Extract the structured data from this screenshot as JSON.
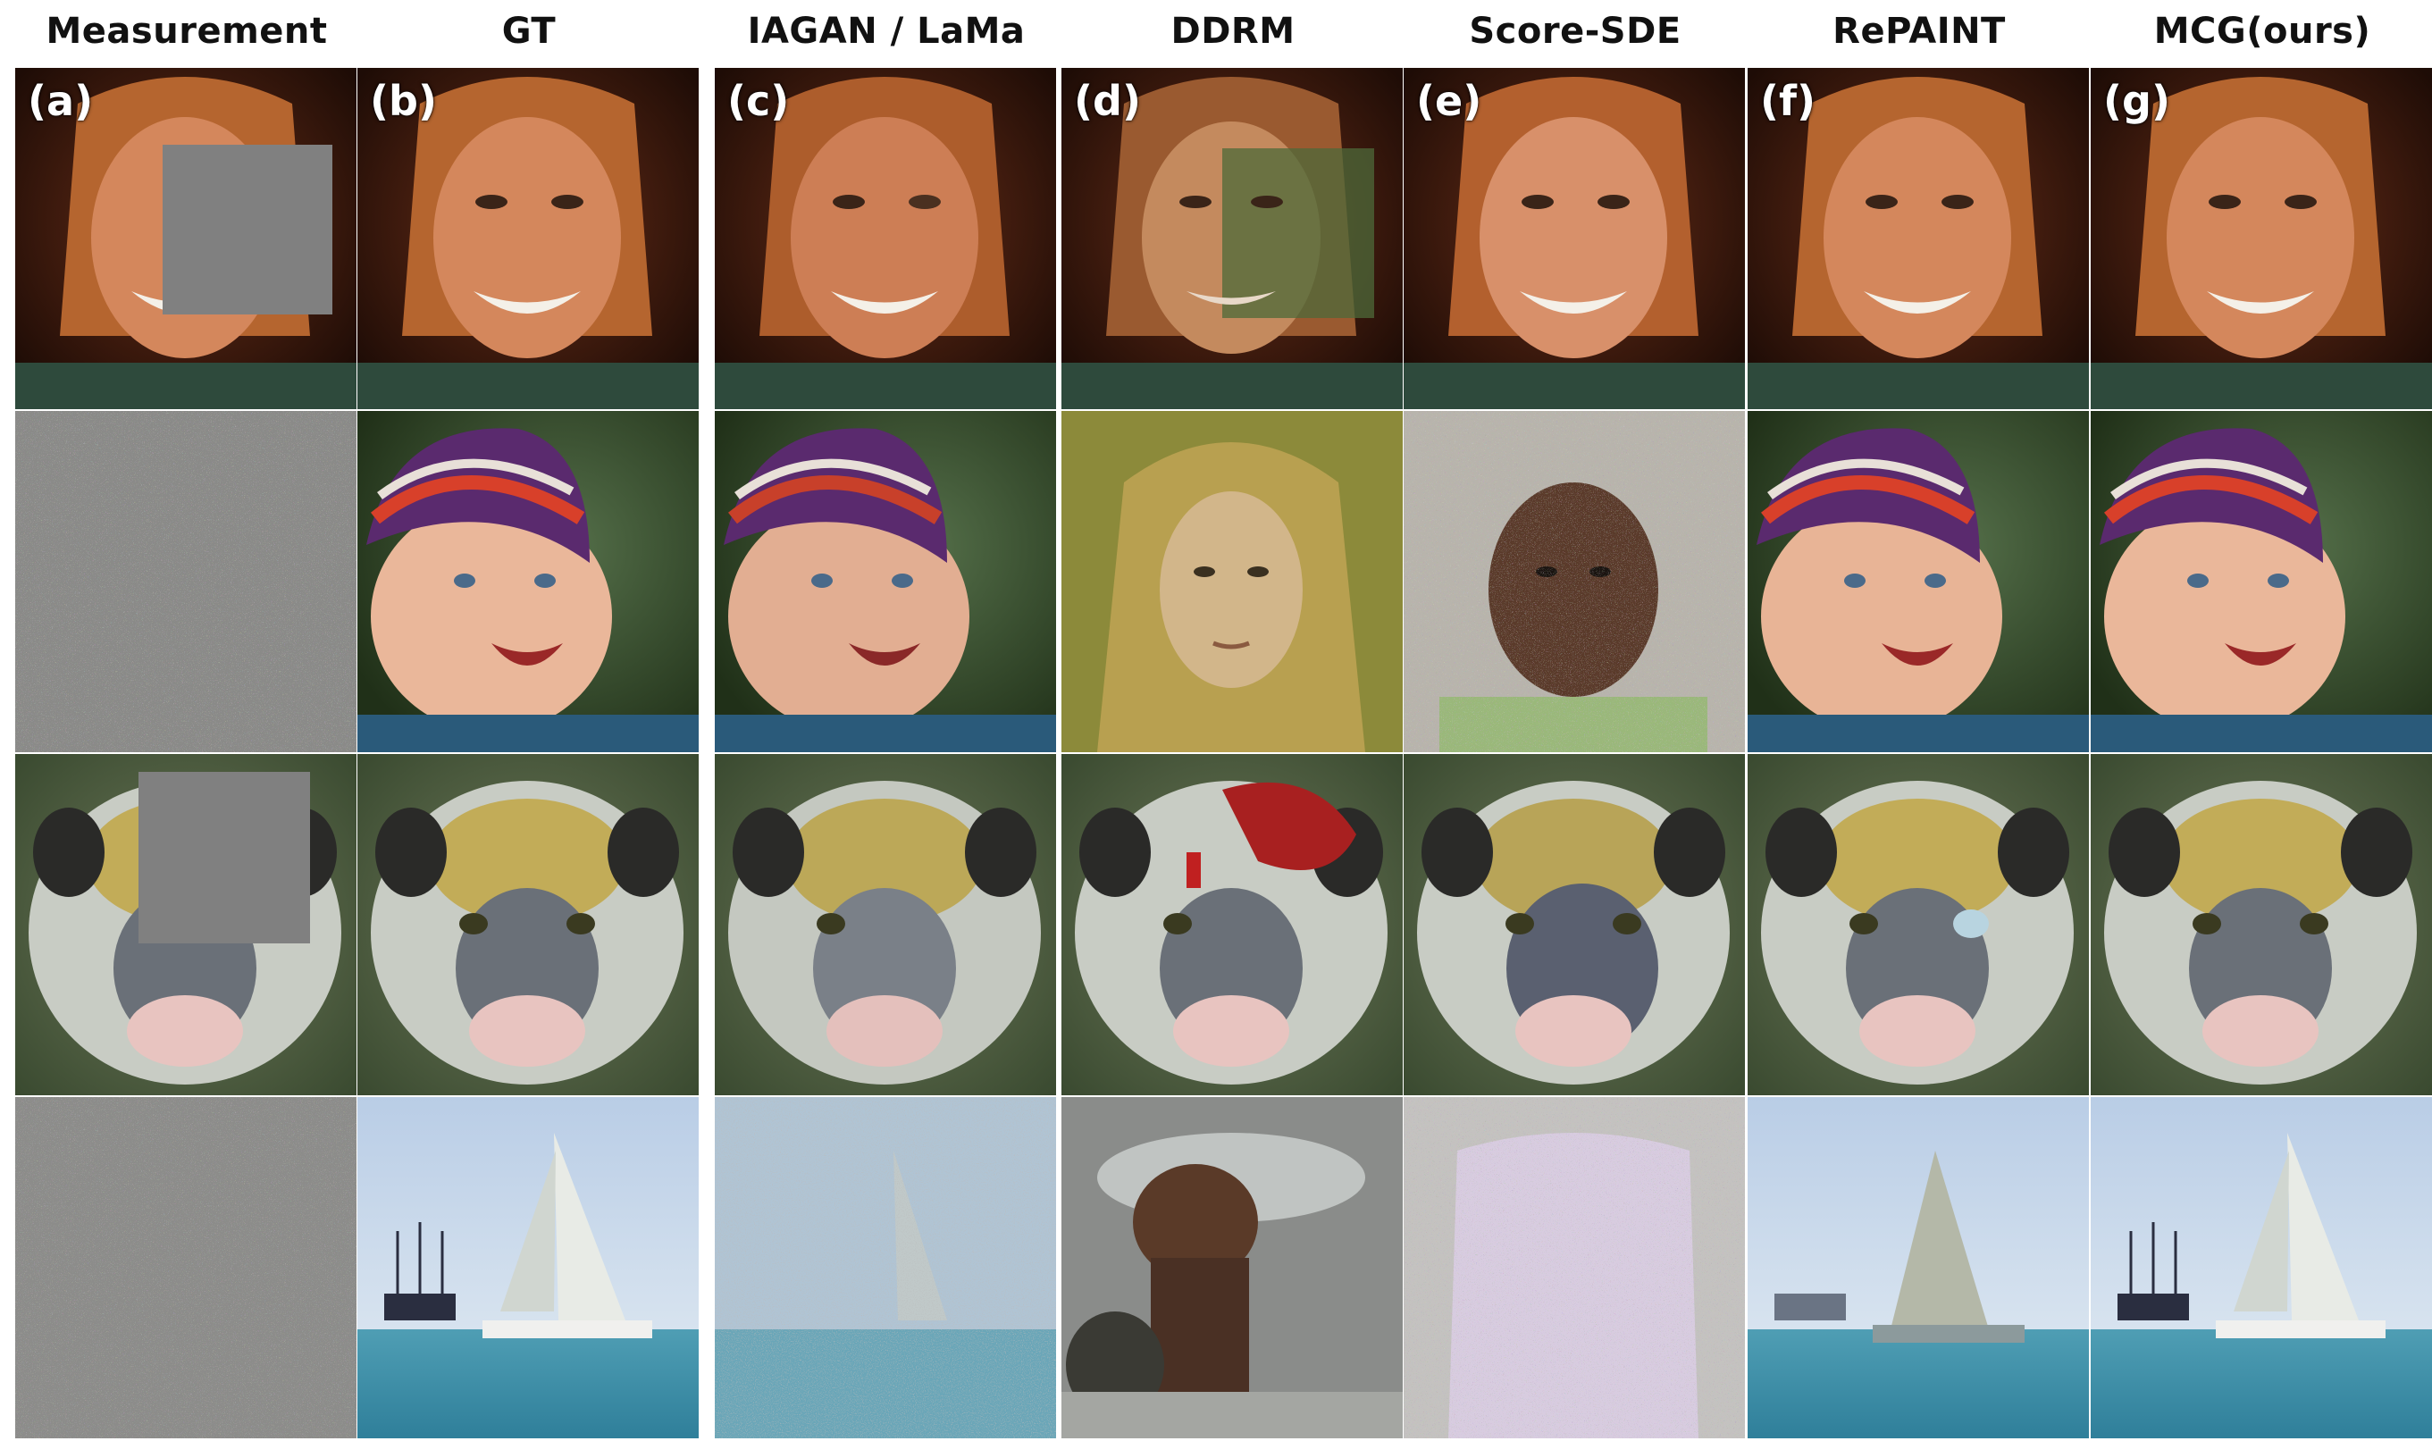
{
  "columns": [
    {
      "title": "Measurement",
      "letter": "(a)"
    },
    {
      "title": "GT",
      "letter": "(b)"
    },
    {
      "title": "IAGAN / LaMa",
      "letter": "(c)"
    },
    {
      "title": "DDRM",
      "letter": "(d)"
    },
    {
      "title": "Score-SDE",
      "letter": "(e)"
    },
    {
      "title": "RePAINT",
      "letter": "(f)"
    },
    {
      "title": "MCG(ours)",
      "letter": "(g)"
    }
  ]
}
